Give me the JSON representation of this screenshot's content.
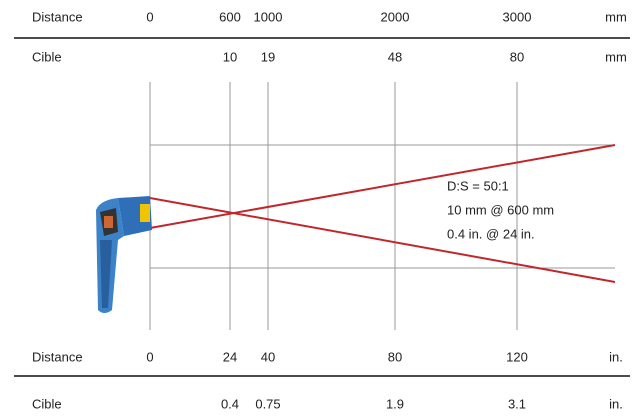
{
  "rows": [
    {
      "label": "Distance",
      "values": [
        "0",
        "600",
        "1000",
        "2000",
        "3000"
      ],
      "unit": "mm"
    },
    {
      "label": "Cible",
      "values": [
        "10",
        "19",
        "48",
        "80"
      ],
      "unit": "mm"
    },
    {
      "label": "Distance",
      "values": [
        "0",
        "24",
        "40",
        "80",
        "120"
      ],
      "unit": "in."
    },
    {
      "label": "Cible",
      "values": [
        "0.4",
        "0.75",
        "1.9",
        "3.1"
      ],
      "unit": "in."
    }
  ],
  "annotation": [
    "D:S = 50:1",
    "10 mm @ 600 mm",
    "0.4 in. @ 24 in."
  ]
}
